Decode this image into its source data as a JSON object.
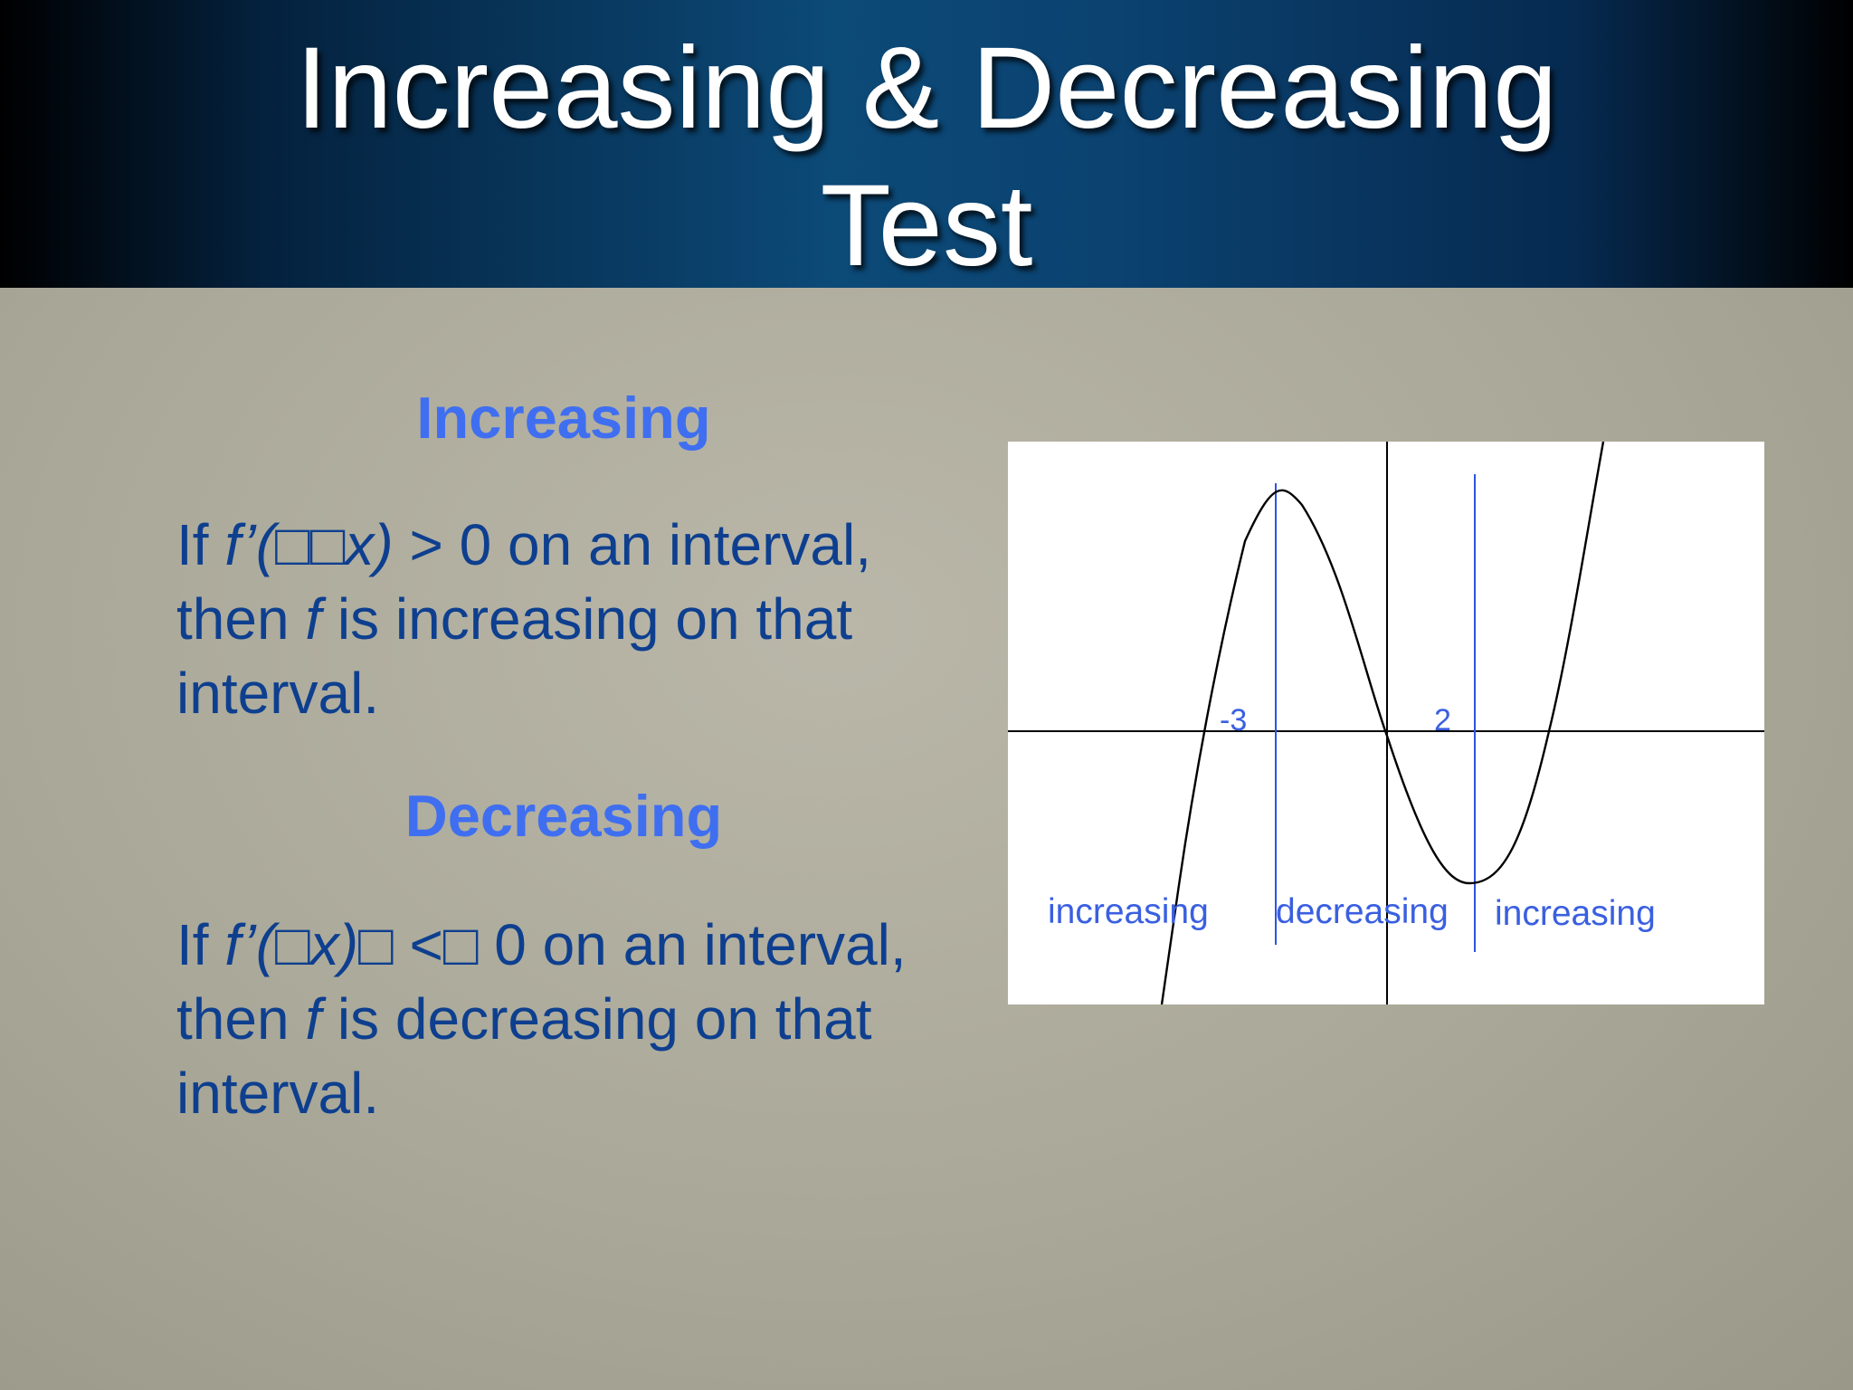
{
  "title": {
    "line1": "Increasing & Decreasing",
    "line2": "Test"
  },
  "increasing": {
    "heading": "Increasing",
    "rule": {
      "p1": "If ",
      "f_prime": "f’(",
      "boxes": "□□",
      "x": "x)",
      "p2": " > 0 on an interval,",
      "p3": "then ",
      "f": "f",
      "p4": " is increasing on that interval."
    }
  },
  "decreasing": {
    "heading": "Decreasing",
    "rule": {
      "p1": "If ",
      "f_prime": "f’(",
      "box1": "□",
      "x": "x)",
      "box2": "□",
      "p2": " <",
      "box3": "□",
      "p3": " 0 on an interval, then ",
      "f": "f",
      "p4": " is decreasing on that interval."
    }
  },
  "graph": {
    "tick_neg": "-3",
    "tick_pos": "2",
    "label_left": "increasing",
    "label_mid": "decreasing",
    "label_right": "increasing",
    "curve_color": "#000000",
    "marker_color": "#2d54e0",
    "label_color": "#3a5fe0"
  }
}
